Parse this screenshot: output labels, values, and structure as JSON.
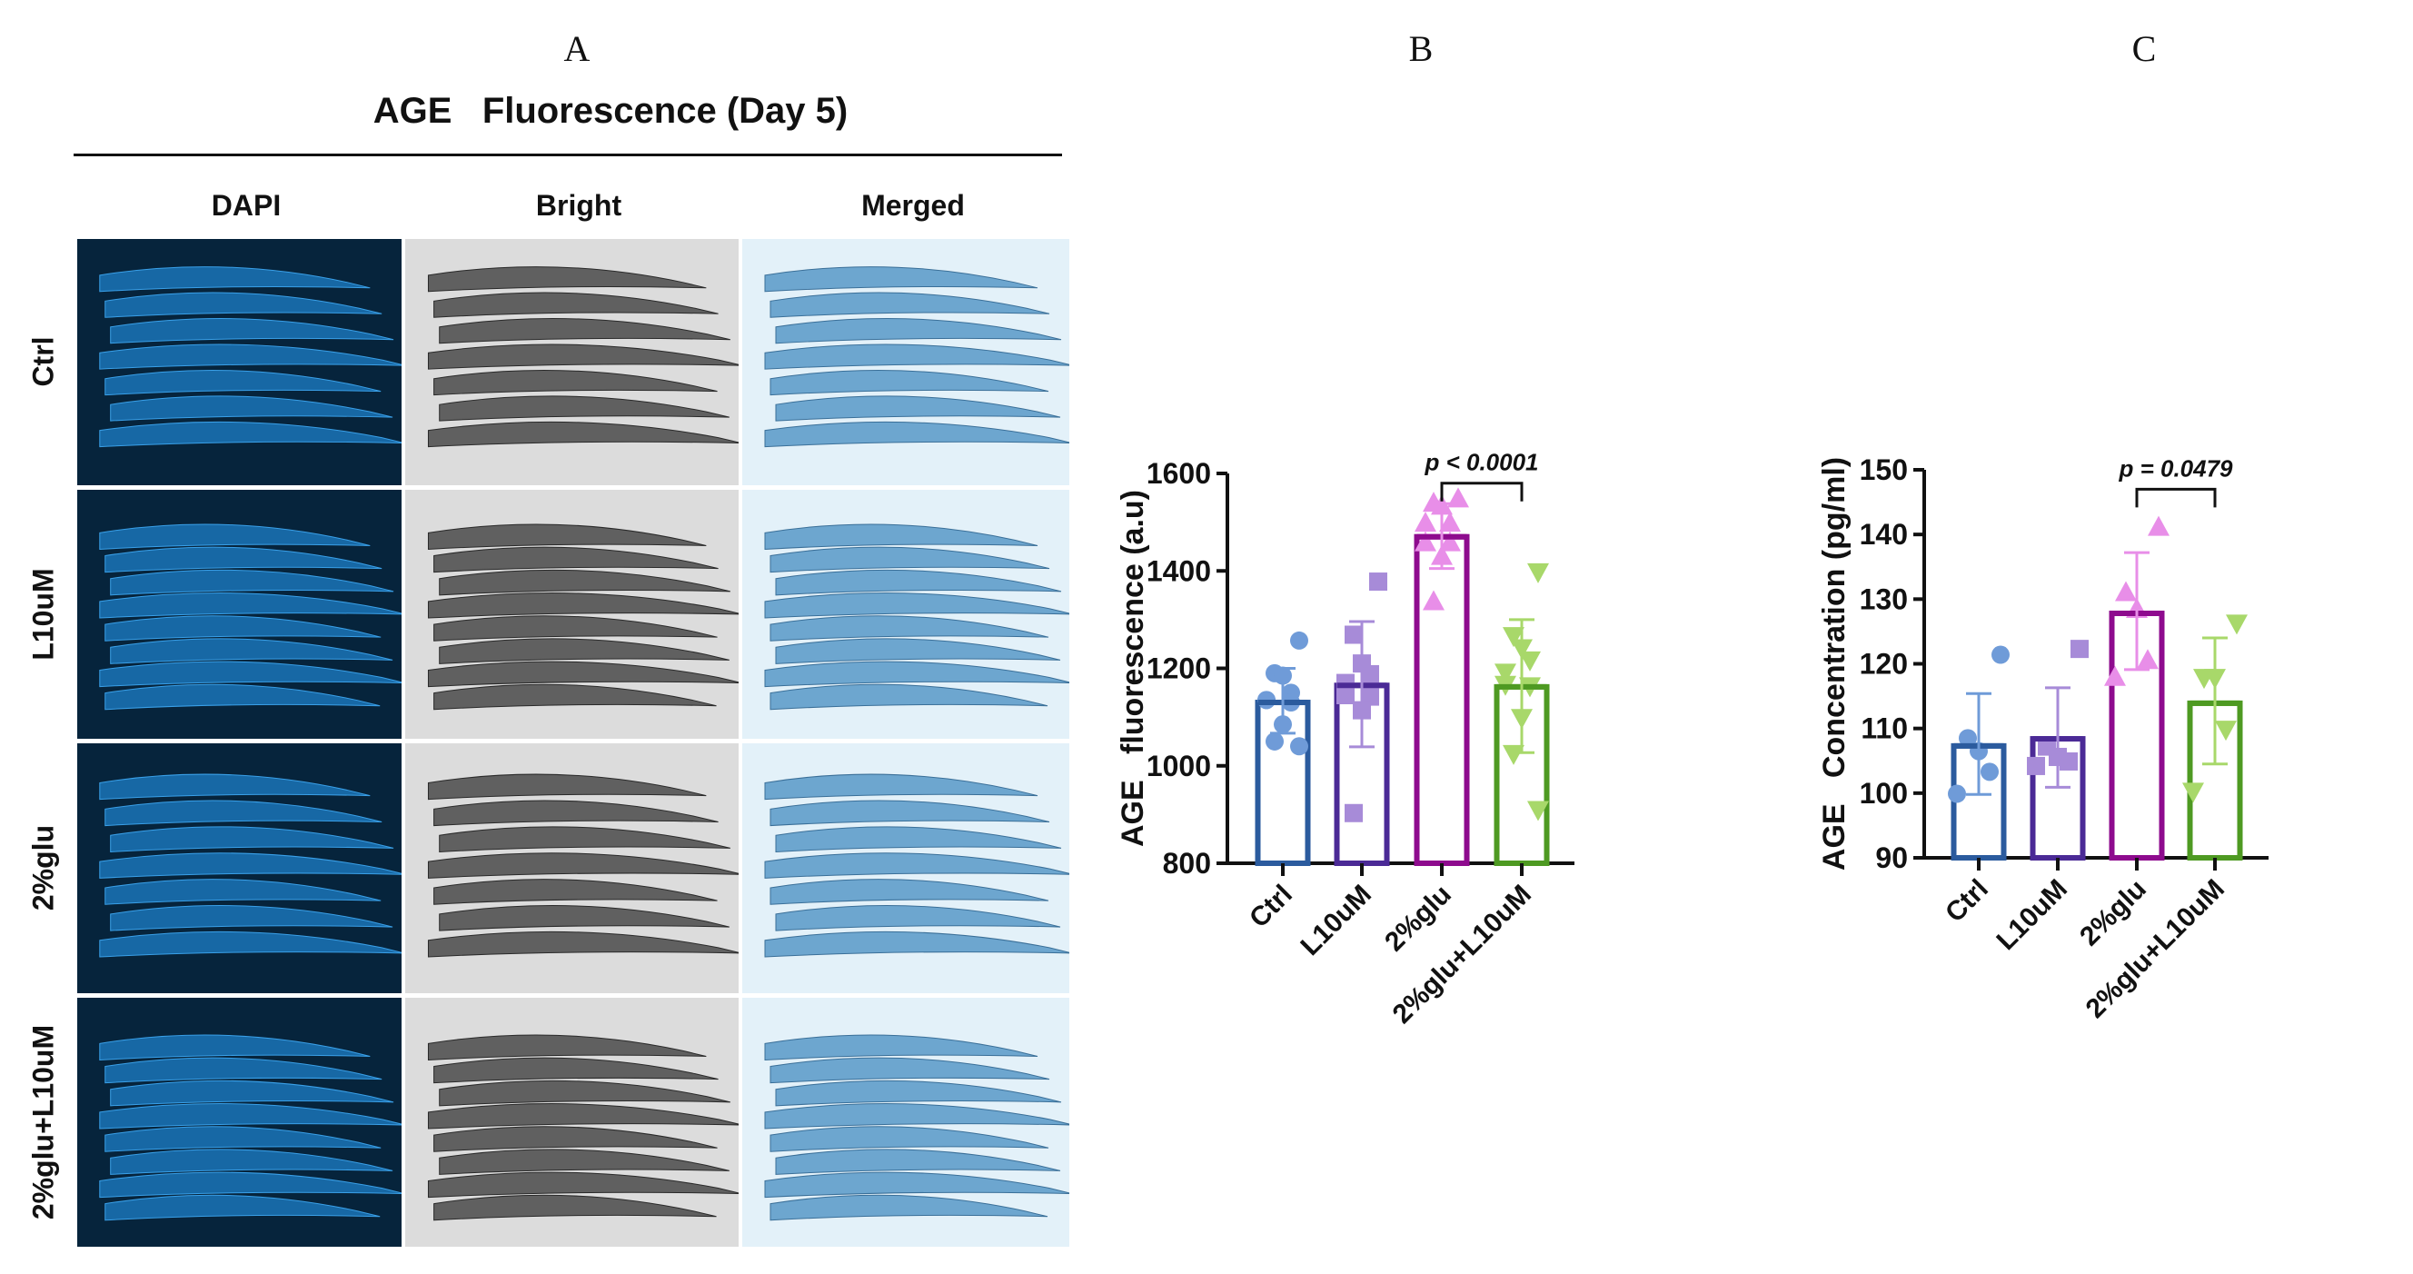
{
  "panel_letters": {
    "a": "A",
    "b": "B",
    "c": "C"
  },
  "panel_a": {
    "title": "AGE   Fluorescence (Day 5)",
    "columns": [
      "DAPI",
      "Bright",
      "Merged"
    ],
    "rows": [
      "Ctrl",
      "L10uM",
      "2%glu",
      "2%glu+L10uM"
    ]
  },
  "colors": {
    "ctrl_bar": "#2b5b9e",
    "ctrl_pt": "#6f9bd8",
    "l10_bar": "#4b2a96",
    "l10_pt": "#a78bd8",
    "glu_bar": "#8e0b8e",
    "glu_pt": "#e88ee8",
    "glul_bar": "#4e9a22",
    "glul_pt": "#a8d86a"
  },
  "chart_data": [
    {
      "type": "bar",
      "title": "",
      "ylabel": "AGE   fluorescence (a.u)",
      "xlabel": "",
      "ylim": [
        800,
        1600
      ],
      "yticks": [
        "800",
        "1000",
        "1200",
        "1400",
        "1600"
      ],
      "categories": [
        "Ctrl",
        "L10uM",
        "2%glu",
        "2%glu+L10uM"
      ],
      "means": [
        1130,
        1165,
        1470,
        1162
      ],
      "sd_upper": [
        1200,
        1296,
        1538,
        1300
      ],
      "sd_lower": [
        1067,
        1039,
        1405,
        1027
      ],
      "points": [
        [
          1257,
          1190,
          1185,
          1150,
          1135,
          1135,
          1130,
          1085,
          1050,
          1040
        ],
        [
          1378,
          1269,
          1210,
          1188,
          1170,
          1145,
          1142,
          1114,
          903
        ],
        [
          1549,
          1540,
          1534,
          1499,
          1499,
          1459,
          1459,
          1431,
          1338
        ],
        [
          1397,
          1266,
          1241,
          1216,
          1191,
          1166,
          1163,
          1098,
          1024,
          909
        ]
      ],
      "markers": [
        "circle",
        "square",
        "triangle-up",
        "triangle-down"
      ],
      "annotation": {
        "text": "p < 0.0001",
        "between": [
          2,
          3
        ],
        "y": 1580
      }
    },
    {
      "type": "bar",
      "title": "",
      "ylabel": "AGE   Concentration (pg/ml)",
      "xlabel": "",
      "ylim": [
        90,
        150
      ],
      "yticks": [
        "90",
        "100",
        "110",
        "120",
        "130",
        "140",
        "150"
      ],
      "categories": [
        "Ctrl",
        "L10uM",
        "2%glu",
        "2%glu+L10uM"
      ],
      "means": [
        107.3,
        108.4,
        127.8,
        113.9
      ],
      "sd_upper": [
        115.4,
        116.3,
        137.2,
        124.0
      ],
      "sd_lower": [
        99.8,
        100.9,
        119.1,
        104.5
      ],
      "points": [
        [
          121.4,
          108.5,
          106.5,
          103.3,
          99.9
        ],
        [
          122.3,
          107.2,
          105.6,
          104.9,
          104.2
        ],
        [
          141.2,
          131.1,
          128.5,
          120.6,
          118.0
        ],
        [
          126.2,
          117.8,
          117.8,
          109.8,
          100.2
        ]
      ],
      "markers": [
        "circle",
        "square",
        "triangle-up",
        "triangle-down"
      ],
      "annotation": {
        "text": "p = 0.0479",
        "between": [
          2,
          3
        ],
        "y": 147
      }
    }
  ]
}
